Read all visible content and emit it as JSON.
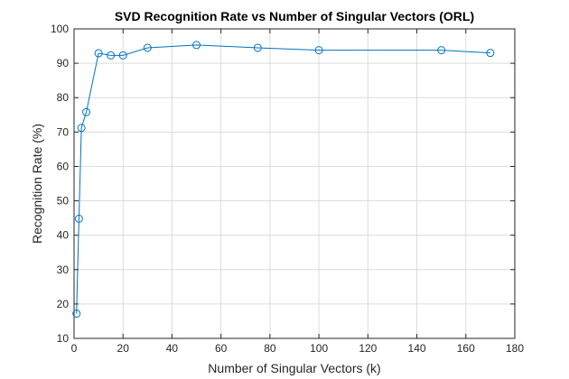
{
  "chart_data": {
    "type": "line",
    "title": "SVD Recognition Rate vs Number of Singular Vectors (ORL)",
    "xlabel": "Number of Singular Vectors (k)",
    "ylabel": "Recognition Rate (%)",
    "xlim": [
      0,
      180
    ],
    "ylim": [
      10,
      100
    ],
    "xticks": [
      0,
      20,
      40,
      60,
      80,
      100,
      120,
      140,
      160,
      180
    ],
    "yticks": [
      10,
      20,
      30,
      40,
      50,
      60,
      70,
      80,
      90,
      100
    ],
    "grid": true,
    "marker": "circle",
    "colors": {
      "series": "#0072BD",
      "grid": "#dcdcdc",
      "axes": "#262626"
    },
    "series": [
      {
        "x": [
          1,
          2,
          3,
          5,
          10,
          15,
          20,
          30,
          50,
          75,
          100,
          150,
          170
        ],
        "values": [
          17.2,
          44.8,
          71.2,
          75.8,
          92.9,
          92.3,
          92.3,
          94.5,
          95.3,
          94.5,
          93.8,
          93.8,
          93.0
        ]
      }
    ]
  }
}
